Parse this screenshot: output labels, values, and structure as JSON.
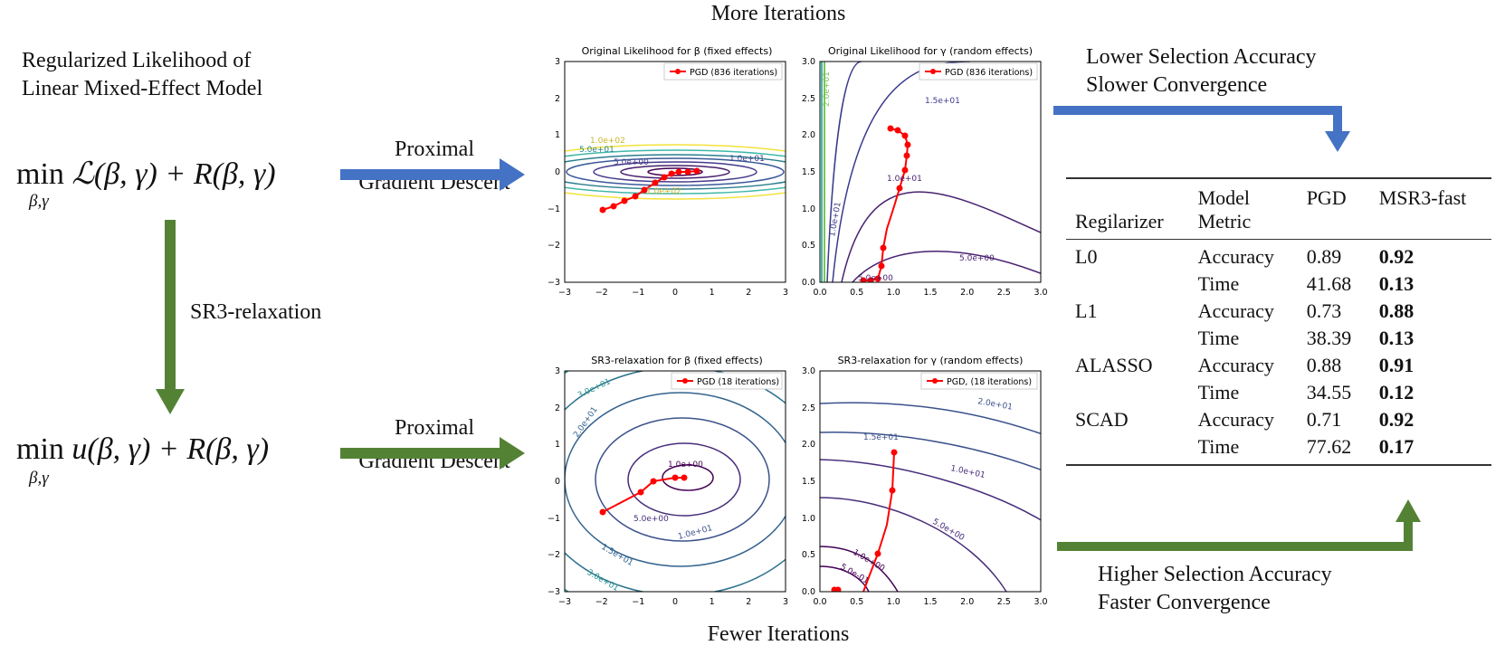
{
  "top_caption": "More Iterations",
  "bottom_caption": "Fewer Iterations",
  "model_title_line1": "Regularized Likelihood of",
  "model_title_line2": "Linear Mixed-Effect Model",
  "formula_top_min": "min",
  "formula_top_sub": "β,γ",
  "formula_top_body": "ℒ(β, γ) + R(β, γ)",
  "formula_bottom_min": "min",
  "formula_bottom_sub": "β,γ",
  "formula_bottom_body": "u(β, γ) + R(β, γ)",
  "relaxation_label": "SR3-relaxation",
  "arrow_top_label_line1": "Proximal",
  "arrow_top_label_line2": "Gradient Descent",
  "arrow_bottom_label_line1": "Proximal",
  "arrow_bottom_label_line2": "Gradient Descent",
  "result_top_line1": "Lower Selection Accuracy",
  "result_top_line2": "Slower Convergence",
  "result_bottom_line1": "Higher Selection Accuracy",
  "result_bottom_line2": "Faster Convergence",
  "colors": {
    "blue_arrow": "#4472c4",
    "green_arrow": "#548235",
    "path": "#ff0000"
  },
  "plots": [
    {
      "title": "Original Likelihood for β (fixed effects)",
      "legend": "PGD (836 iterations)",
      "xticks": [
        "−3",
        "−2",
        "−1",
        "0",
        "1",
        "2",
        "3"
      ],
      "yticks": [
        "3",
        "2",
        "1",
        "0",
        "−1",
        "−2",
        "−3"
      ],
      "contour_labels": [
        "1.0e+02",
        "5.0e+01",
        "1.0e+01",
        "5.0e+00",
        "1.0e+02",
        "1.0e+01"
      ]
    },
    {
      "title": "Original Likelihood for γ (random effects)",
      "legend": "PGD (836 iterations)",
      "xticks": [
        "0.0",
        "0.5",
        "1.0",
        "1.5",
        "2.0",
        "2.5",
        "3.0"
      ],
      "yticks": [
        "3.0",
        "2.5",
        "2.0",
        "1.5",
        "1.0",
        "0.5",
        "0.0"
      ],
      "contour_labels": [
        "1.5e+01",
        "1.0e+01",
        "1.0e+01",
        "5.0e+00",
        "5.0e+00",
        "2.0e+01"
      ]
    },
    {
      "title": "SR3-relaxation for β (fixed effects)",
      "legend": "PGD (18 iterations)",
      "xticks": [
        "−3",
        "−2",
        "−1",
        "0",
        "1",
        "2",
        "3"
      ],
      "yticks": [
        "3",
        "2",
        "1",
        "0",
        "−1",
        "−2",
        "−3"
      ],
      "contour_labels": [
        "3.0e+01",
        "2.0e+01",
        "1.0e+00",
        "5.0e+00",
        "1.5e+01",
        "1.0e+01",
        "3.0e+01",
        "2.0e+01"
      ]
    },
    {
      "title": "SR3-relaxation for γ (random effects)",
      "legend": "PGD, (18 iterations)",
      "xticks": [
        "0.0",
        "0.5",
        "1.0",
        "1.5",
        "2.0",
        "2.5",
        "3.0"
      ],
      "yticks": [
        "3.0",
        "2.5",
        "2.0",
        "1.5",
        "1.0",
        "0.5",
        "0.0"
      ],
      "contour_labels": [
        "2.0e+01",
        "1.5e+01",
        "1.0e+01",
        "5.0e+00",
        "1.0e+00",
        "5.0e-01"
      ]
    }
  ],
  "table": {
    "headers": [
      "Regilarizer",
      "Model Metric",
      "PGD",
      "MSR3-fast"
    ],
    "header_model_line1": "Model",
    "header_model_line2": "Metric",
    "rows": [
      {
        "reg": "L0",
        "metric": "Accuracy",
        "pgd": "0.89",
        "msr3": "0.92"
      },
      {
        "reg": "",
        "metric": "Time",
        "pgd": "41.68",
        "msr3": "0.13"
      },
      {
        "reg": "L1",
        "metric": "Accuracy",
        "pgd": "0.73",
        "msr3": "0.88"
      },
      {
        "reg": "",
        "metric": "Time",
        "pgd": "38.39",
        "msr3": "0.13"
      },
      {
        "reg": "ALASSO",
        "metric": "Accuracy",
        "pgd": "0.88",
        "msr3": "0.91"
      },
      {
        "reg": "",
        "metric": "Time",
        "pgd": "34.55",
        "msr3": "0.12"
      },
      {
        "reg": "SCAD",
        "metric": "Accuracy",
        "pgd": "0.71",
        "msr3": "0.92"
      },
      {
        "reg": "",
        "metric": "Time",
        "pgd": "77.62",
        "msr3": "0.17"
      }
    ]
  }
}
